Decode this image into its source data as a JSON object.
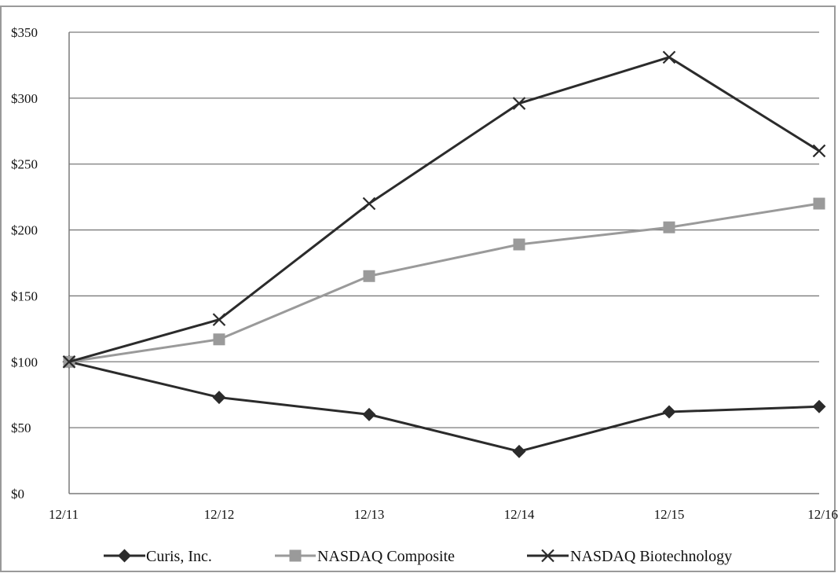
{
  "chart_data": {
    "type": "line",
    "title": "",
    "xlabel": "",
    "ylabel": "",
    "categories": [
      "12/11",
      "12/12",
      "12/13",
      "12/14",
      "12/15",
      "12/16"
    ],
    "ylim": [
      0,
      350
    ],
    "yticks": [
      0,
      50,
      100,
      150,
      200,
      250,
      300,
      350
    ],
    "ytick_labels": [
      "$0",
      "$50",
      "$100",
      "$150",
      "$200",
      "$250",
      "$300",
      "$350"
    ],
    "grid": true,
    "legend": "bottom",
    "series": [
      {
        "name": "Curis, Inc.",
        "values": [
          100,
          73,
          60,
          32,
          62,
          66
        ],
        "color": "#2b2b2b",
        "marker": "diamond"
      },
      {
        "name": "NASDAQ Composite",
        "values": [
          100,
          117,
          165,
          189,
          202,
          220
        ],
        "color": "#9a9a9a",
        "marker": "square"
      },
      {
        "name": "NASDAQ Biotechnology",
        "values": [
          100,
          132,
          220,
          296,
          331,
          260
        ],
        "color": "#2b2b2b",
        "marker": "x"
      }
    ]
  }
}
